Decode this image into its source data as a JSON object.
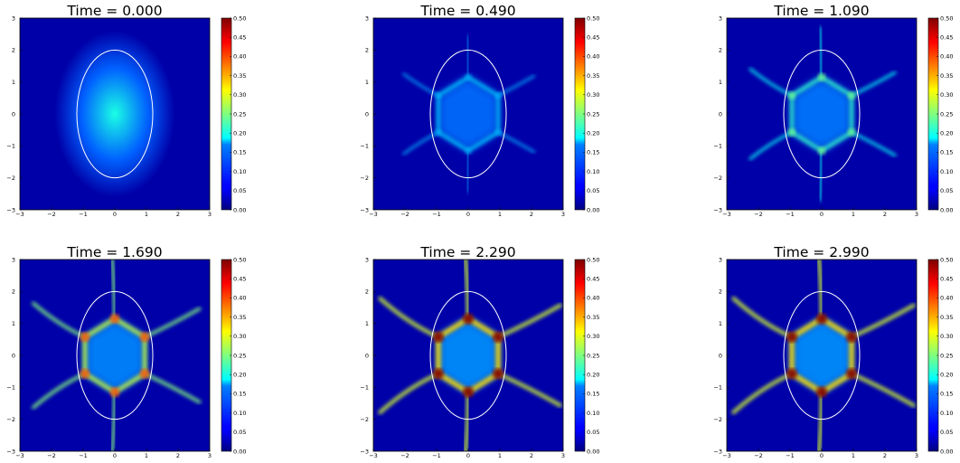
{
  "figure": {
    "colormap": "jet",
    "background": "#ffffff"
  },
  "chart_data": [
    {
      "type": "heatmap",
      "title": "Time = 0.000",
      "xlim": [
        -3,
        3
      ],
      "ylim": [
        -3,
        3
      ],
      "xticks": [
        "-3",
        "-2",
        "-1",
        "0",
        "1",
        "2",
        "3"
      ],
      "yticks": [
        "3",
        "2",
        "1",
        "0",
        "-1",
        "-2",
        "-3"
      ],
      "colorbar": {
        "range": [
          0,
          0.5
        ],
        "ticks": [
          "0.50",
          "0.45",
          "0.40",
          "0.35",
          "0.30",
          "0.25",
          "0.20",
          "0.15",
          "0.10",
          "0.05",
          "0.00"
        ]
      },
      "overlay_ellipse": {
        "cx": 0,
        "cy": 0,
        "rx": 1.2,
        "ry": 2,
        "color": "#ffffff"
      },
      "pattern": "gaussian-blob",
      "peak_value": 0.2,
      "background_value": 0.02
    },
    {
      "type": "heatmap",
      "title": "Time = 0.490",
      "xlim": [
        -3,
        3
      ],
      "ylim": [
        -3,
        3
      ],
      "xticks": [
        "-3",
        "-2",
        "-1",
        "0",
        "1",
        "2",
        "3"
      ],
      "yticks": [
        "3",
        "2",
        "1",
        "0",
        "-1",
        "-2",
        "-3"
      ],
      "colorbar": {
        "range": [
          0,
          0.5
        ],
        "ticks": [
          "0.50",
          "0.45",
          "0.40",
          "0.35",
          "0.30",
          "0.25",
          "0.20",
          "0.15",
          "0.10",
          "0.05",
          "0.00"
        ]
      },
      "overlay_ellipse": {
        "cx": 0,
        "cy": 0,
        "rx": 1.2,
        "ry": 2,
        "color": "#ffffff"
      },
      "pattern": "hexagon-with-arms",
      "peak_value": 0.15,
      "background_value": 0.02
    },
    {
      "type": "heatmap",
      "title": "Time = 1.090",
      "xlim": [
        -3,
        3
      ],
      "ylim": [
        -3,
        3
      ],
      "xticks": [
        "-3",
        "-2",
        "-1",
        "0",
        "1",
        "2",
        "3"
      ],
      "yticks": [
        "3",
        "2",
        "1",
        "0",
        "-1",
        "-2",
        "-3"
      ],
      "colorbar": {
        "range": [
          0,
          0.5
        ],
        "ticks": [
          "0.50",
          "0.45",
          "0.40",
          "0.35",
          "0.30",
          "0.25",
          "0.20",
          "0.15",
          "0.10",
          "0.05",
          "0.00"
        ]
      },
      "overlay_ellipse": {
        "cx": 0,
        "cy": 0,
        "rx": 1.2,
        "ry": 2,
        "color": "#ffffff"
      },
      "pattern": "hexagon-with-arms",
      "peak_value": 0.25,
      "background_value": 0.02
    },
    {
      "type": "heatmap",
      "title": "Time = 1.690",
      "xlim": [
        -3,
        3
      ],
      "ylim": [
        -3,
        3
      ],
      "xticks": [
        "-3",
        "-2",
        "-1",
        "0",
        "1",
        "2",
        "3"
      ],
      "yticks": [
        "3",
        "2",
        "1",
        "0",
        "-1",
        "-2",
        "-3"
      ],
      "colorbar": {
        "range": [
          0,
          0.5
        ],
        "ticks": [
          "0.50",
          "0.45",
          "0.40",
          "0.35",
          "0.30",
          "0.25",
          "0.20",
          "0.15",
          "0.10",
          "0.05",
          "0.00"
        ]
      },
      "overlay_ellipse": {
        "cx": 0,
        "cy": 0,
        "rx": 1.2,
        "ry": 2,
        "color": "#ffffff"
      },
      "pattern": "hexagon-with-arms",
      "peak_value": 0.4,
      "background_value": 0.02
    },
    {
      "type": "heatmap",
      "title": "Time = 2.290",
      "xlim": [
        -3,
        3
      ],
      "ylim": [
        -3,
        3
      ],
      "xticks": [
        "-3",
        "-2",
        "-1",
        "0",
        "1",
        "2",
        "3"
      ],
      "yticks": [
        "3",
        "2",
        "1",
        "0",
        "-1",
        "-2",
        "-3"
      ],
      "colorbar": {
        "range": [
          0,
          0.5
        ],
        "ticks": [
          "0.50",
          "0.45",
          "0.40",
          "0.35",
          "0.30",
          "0.25",
          "0.20",
          "0.15",
          "0.10",
          "0.05",
          "0.00"
        ]
      },
      "overlay_ellipse": {
        "cx": 0,
        "cy": 0,
        "rx": 1.2,
        "ry": 2,
        "color": "#ffffff"
      },
      "pattern": "hexagon-with-arms",
      "peak_value": 0.5,
      "background_value": 0.02
    },
    {
      "type": "heatmap",
      "title": "Time = 2.990",
      "xlim": [
        -3,
        3
      ],
      "ylim": [
        -3,
        3
      ],
      "xticks": [
        "-3",
        "-2",
        "-1",
        "0",
        "1",
        "2",
        "3"
      ],
      "yticks": [
        "3",
        "2",
        "1",
        "0",
        "-1",
        "-2",
        "-3"
      ],
      "colorbar": {
        "range": [
          0,
          0.5
        ],
        "ticks": [
          "0.50",
          "0.45",
          "0.40",
          "0.35",
          "0.30",
          "0.25",
          "0.20",
          "0.15",
          "0.10",
          "0.05",
          "0.00"
        ]
      },
      "overlay_ellipse": {
        "cx": 0,
        "cy": 0,
        "rx": 1.2,
        "ry": 2,
        "color": "#ffffff"
      },
      "pattern": "hexagon-with-arms",
      "peak_value": 0.5,
      "background_value": 0.02
    }
  ]
}
